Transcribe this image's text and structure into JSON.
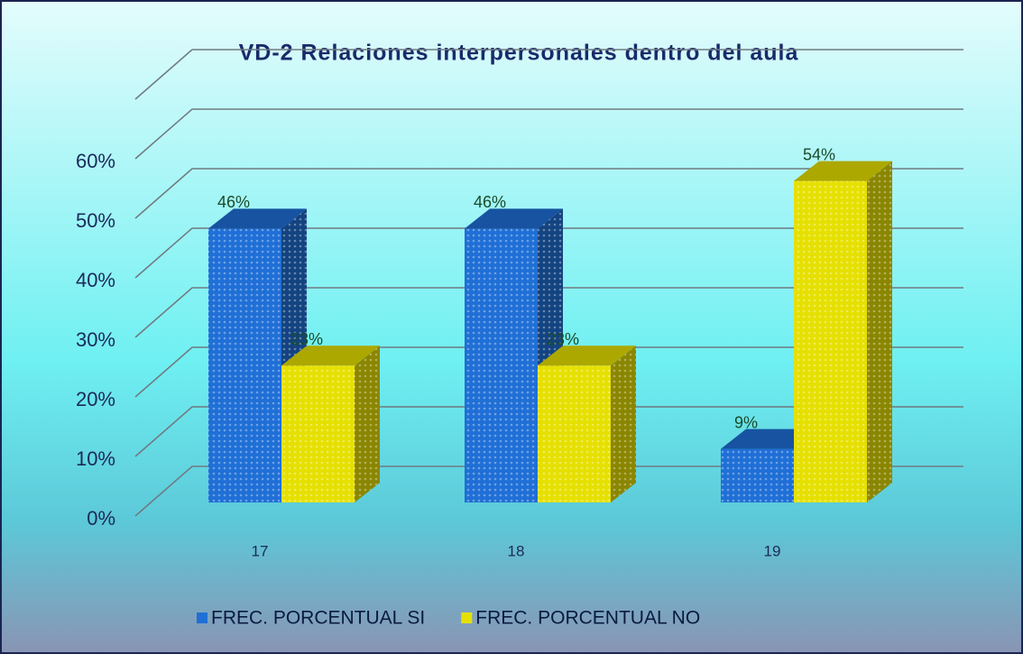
{
  "chart_data": {
    "type": "bar3d",
    "title": "VD-2 Relaciones interpersonales dentro del aula",
    "categories": [
      "17",
      "18",
      "19"
    ],
    "series": [
      {
        "name": "FREC. PORCENTUAL SI",
        "color": "#1f6fd6",
        "values": [
          46,
          46,
          9
        ],
        "value_labels": [
          "46%",
          "46%",
          "9%"
        ]
      },
      {
        "name": "FREC. PORCENTUAL NO",
        "color": "#e6e000",
        "values": [
          23,
          23,
          54
        ],
        "value_labels": [
          "23%",
          "23%",
          "54%"
        ]
      }
    ],
    "ylim": [
      0,
      70
    ],
    "yticks": [
      {
        "value": 0,
        "label": "0%"
      },
      {
        "value": 10,
        "label": "10%"
      },
      {
        "value": 20,
        "label": "20%"
      },
      {
        "value": 30,
        "label": "30%"
      },
      {
        "value": 40,
        "label": "40%"
      },
      {
        "value": 50,
        "label": "50%"
      },
      {
        "value": 60,
        "label": "60%"
      }
    ],
    "grid": true,
    "legend": "bottom"
  }
}
